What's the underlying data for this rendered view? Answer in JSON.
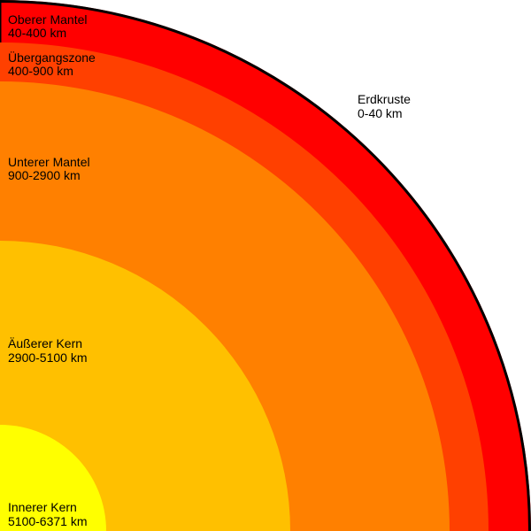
{
  "layers": [
    {
      "name": "Erdkruste",
      "range": "0-40 km"
    },
    {
      "name": "Oberer Mantel",
      "range": "40-400 km"
    },
    {
      "name": "Übergangszone",
      "range": "400-900 km"
    },
    {
      "name": "Unterer Mantel",
      "range": "900-2900 km"
    },
    {
      "name": "Äußerer Kern",
      "range": "2900-5100 km"
    },
    {
      "name": "Innerer Kern",
      "range": "5100-6371 km"
    }
  ]
}
